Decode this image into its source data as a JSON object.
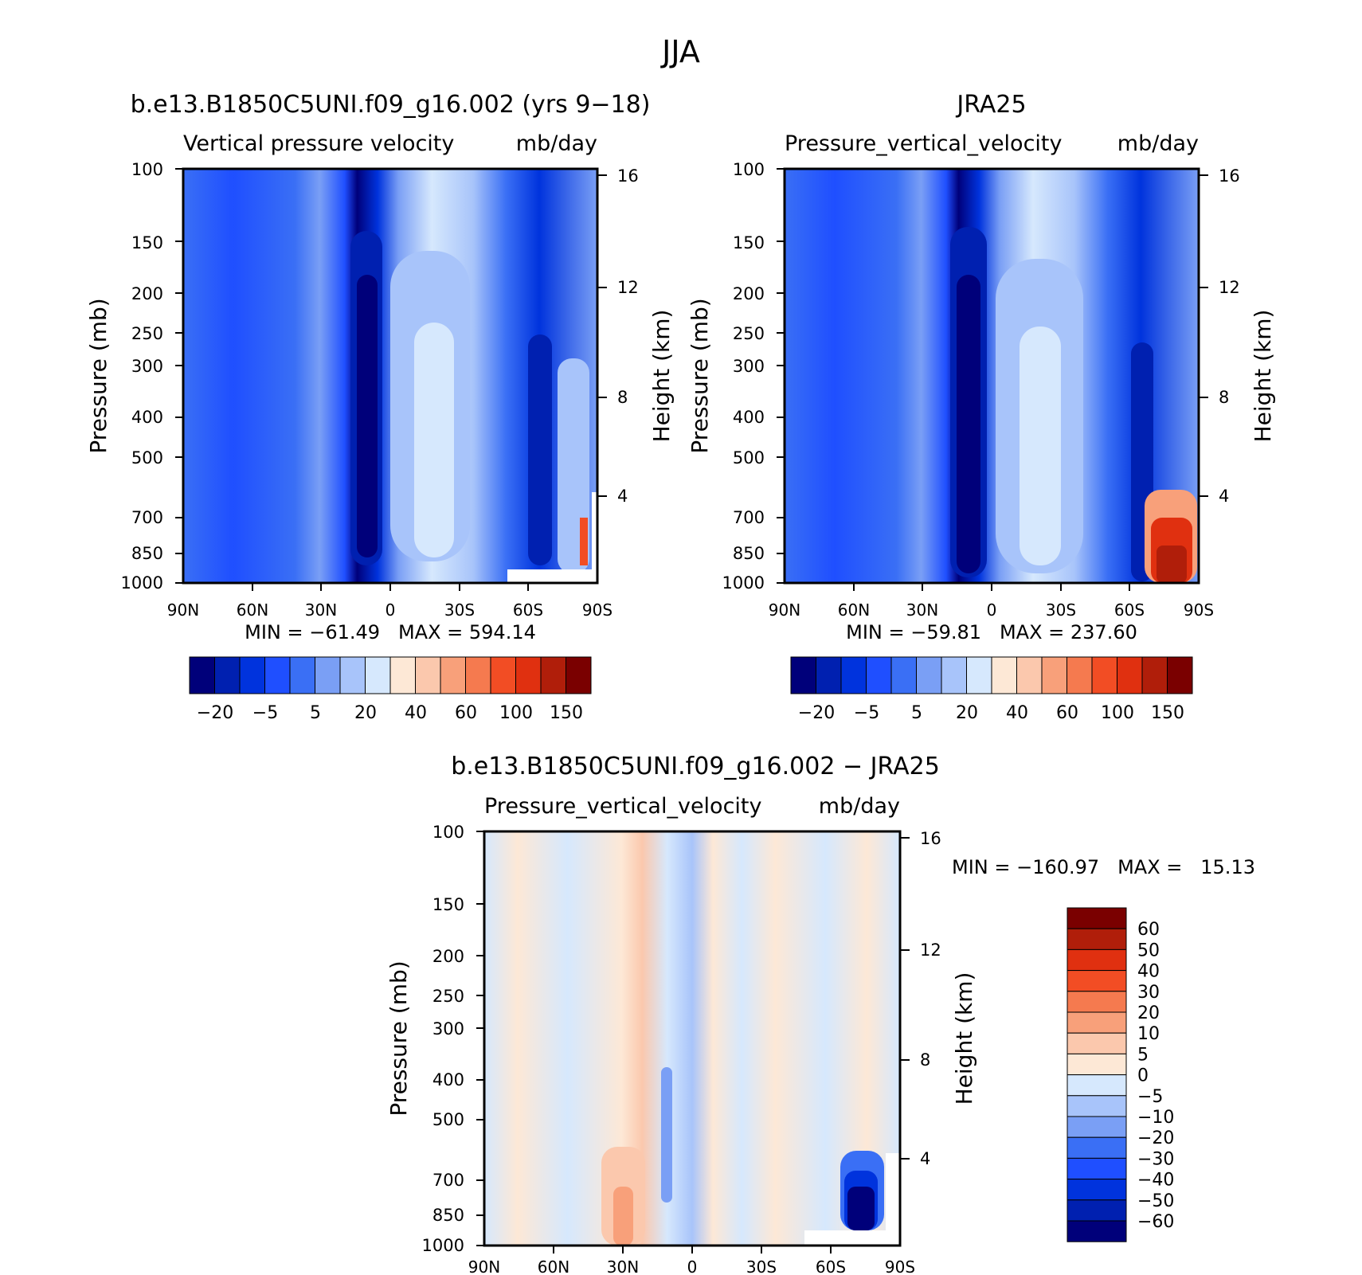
{
  "figure_title": "JJA",
  "colors": {
    "panel_palette": [
      "#00007a",
      "#0020b0",
      "#0033dd",
      "#1f4fff",
      "#3a6ff5",
      "#7a9ff5",
      "#a8c4fa",
      "#d6e8fd",
      "#fde8d6",
      "#fbc8ad",
      "#f8a07a",
      "#f57a4f",
      "#f24d24",
      "#e03010",
      "#b01e0a",
      "#7a0000"
    ],
    "diff_palette": [
      "#00007a",
      "#0020b0",
      "#0033dd",
      "#1f4fff",
      "#3a6ff5",
      "#7a9ff5",
      "#a8c4fa",
      "#d6e8fd",
      "#fde8d6",
      "#fbc8ad",
      "#f8a07a",
      "#f57a4f",
      "#f24d24",
      "#e03010",
      "#b01e0a",
      "#7a0000"
    ]
  },
  "chart_data": [
    {
      "type": "heatmap",
      "panel_title": "b.e13.B1850C5UNI.f09_g16.002 (yrs 9−18)",
      "variable": "Vertical pressure velocity",
      "units": "mb/day",
      "ylabel": "Pressure (mb)",
      "y2label": "Height (km)",
      "xticks": [
        "90N",
        "60N",
        "30N",
        "0",
        "30S",
        "60S",
        "90S"
      ],
      "yticks": [
        "100",
        "150",
        "200",
        "250",
        "300",
        "400",
        "500",
        "700",
        "850",
        "1000"
      ],
      "y2ticks": [
        "16",
        "12",
        "8",
        "4"
      ],
      "stats": "MIN = −61.49   MAX = 594.14",
      "colorbar_labels": [
        "−20",
        "−5",
        "5",
        "20",
        "40",
        "60",
        "100",
        "150"
      ],
      "features": [
        {
          "lat": -10,
          "p_top": 190,
          "value": -25
        },
        {
          "lat": 15,
          "p_top": 200,
          "value": 15
        },
        {
          "lat": 65,
          "p_top": 450,
          "value": -22
        },
        {
          "lat": 88,
          "p_top": 750,
          "value": 150
        }
      ]
    },
    {
      "type": "heatmap",
      "panel_title": "JRA25",
      "variable": "Pressure_vertical_velocity",
      "units": "mb/day",
      "ylabel": "Pressure (mb)",
      "y2label": "Height (km)",
      "xticks": [
        "90N",
        "60N",
        "30N",
        "0",
        "30S",
        "60S",
        "90S"
      ],
      "yticks": [
        "100",
        "150",
        "200",
        "250",
        "300",
        "400",
        "500",
        "700",
        "850",
        "1000"
      ],
      "y2ticks": [
        "16",
        "12",
        "8",
        "4"
      ],
      "stats": "MIN = −59.81   MAX = 237.60",
      "colorbar_labels": [
        "−20",
        "−5",
        "5",
        "20",
        "40",
        "60",
        "100",
        "150"
      ],
      "features": [
        {
          "lat": -10,
          "p_top": 190,
          "value": -25
        },
        {
          "lat": 18,
          "p_top": 210,
          "value": 15
        },
        {
          "lat": 65,
          "p_top": 450,
          "value": -22
        },
        {
          "lat": 80,
          "p_top": 700,
          "value": 150
        }
      ]
    },
    {
      "type": "heatmap",
      "panel_title": "b.e13.B1850C5UNI.f09_g16.002 − JRA25",
      "variable": "Pressure_vertical_velocity",
      "units": "mb/day",
      "ylabel": "Pressure (mb)",
      "y2label": "Height (km)",
      "xticks": [
        "90N",
        "60N",
        "30N",
        "0",
        "30S",
        "60S",
        "90S"
      ],
      "yticks": [
        "100",
        "150",
        "200",
        "250",
        "300",
        "400",
        "500",
        "700",
        "850",
        "1000"
      ],
      "y2ticks": [
        "16",
        "12",
        "8",
        "4"
      ],
      "stats": "MIN = −160.97   MAX =   15.13",
      "colorbar_labels": [
        "60",
        "50",
        "40",
        "30",
        "20",
        "10",
        "5",
        "0",
        "−5",
        "−10",
        "−20",
        "−30",
        "−40",
        "−50",
        "−60"
      ],
      "features": [
        {
          "lat": -30,
          "p_top": 700,
          "value": 10
        },
        {
          "lat": 75,
          "p_top": 750,
          "value": -60
        }
      ]
    }
  ]
}
